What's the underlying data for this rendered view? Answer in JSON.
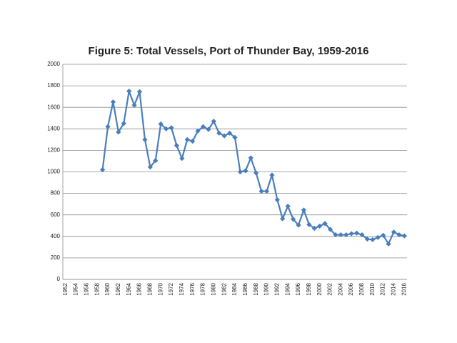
{
  "chart_data": {
    "type": "line",
    "title": "Figure 5: Total Vessels, Port of Thunder Bay, 1959-2016",
    "categories": [
      "1952",
      null,
      "1954",
      null,
      "1956",
      null,
      "1958",
      null,
      "1960",
      null,
      "1962",
      null,
      "1964",
      null,
      "1966",
      null,
      "1968",
      null,
      "1970",
      null,
      "1972",
      null,
      "1974",
      null,
      "1976",
      null,
      "1978",
      null,
      "1980",
      null,
      "1982",
      null,
      "1984",
      null,
      "1986",
      null,
      "1988",
      null,
      "1990",
      null,
      "1992",
      null,
      "1994",
      null,
      "1996",
      null,
      "1998",
      null,
      "2000",
      null,
      "2002",
      null,
      "2004",
      null,
      "2006",
      null,
      "2008",
      null,
      "2010",
      null,
      "2012",
      null,
      "2014",
      null,
      "2016"
    ],
    "series": [
      {
        "color": "#4a7ebb",
        "values": [
          null,
          null,
          null,
          null,
          null,
          null,
          null,
          1020,
          1420,
          1650,
          1370,
          1450,
          1750,
          1620,
          1745,
          1300,
          1045,
          1105,
          1445,
          1400,
          1410,
          1245,
          1125,
          1300,
          1285,
          1380,
          1420,
          1395,
          1470,
          1360,
          1335,
          1360,
          1320,
          1000,
          1010,
          1130,
          990,
          820,
          820,
          970,
          740,
          565,
          680,
          560,
          505,
          645,
          510,
          475,
          495,
          520,
          465,
          415,
          415,
          415,
          425,
          430,
          415,
          375,
          370,
          390,
          410,
          330,
          440,
          415,
          405
        ]
      }
    ],
    "ylim": [
      0,
      2000
    ],
    "yticks": [
      0,
      200,
      400,
      600,
      800,
      1000,
      1200,
      1400,
      1600,
      1800,
      2000
    ],
    "grid": true
  }
}
